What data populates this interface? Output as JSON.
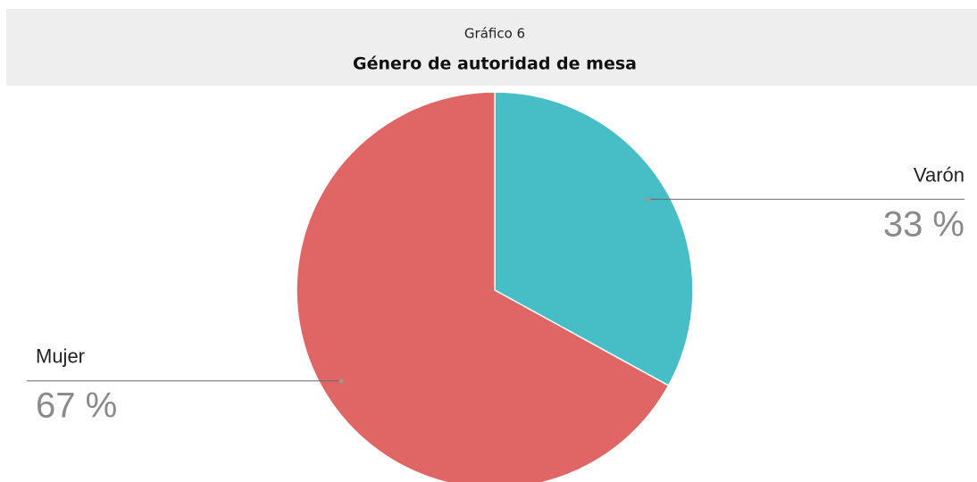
{
  "chart_data": {
    "type": "pie",
    "subtitle": "Gráfico 6",
    "title": "Género de autoridad de mesa",
    "categories": [
      "Varón",
      "Mujer"
    ],
    "values": [
      33,
      67
    ],
    "value_labels": [
      "33 %",
      "67 %"
    ],
    "colors": [
      "#47bdc6",
      "#e06666"
    ]
  }
}
